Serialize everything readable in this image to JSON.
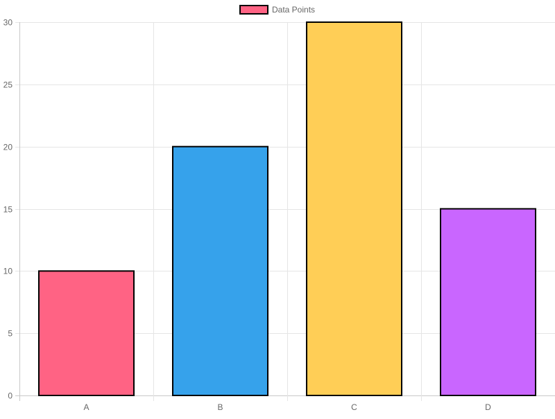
{
  "chart_data": {
    "type": "bar",
    "categories": [
      "A",
      "B",
      "C",
      "D"
    ],
    "series": [
      {
        "name": "Data Points",
        "values": [
          10,
          20,
          30,
          15
        ]
      }
    ],
    "ylim": [
      0,
      30
    ],
    "yticks": [
      0,
      5,
      10,
      15,
      20,
      25,
      30
    ],
    "grid": true,
    "legend": "top-center",
    "colors": [
      "#ff6384",
      "#36a2eb",
      "#ffce56",
      "#c966ff"
    ],
    "border_color": "#000000",
    "grid_color": "#e5e5e5",
    "axis_color": "#c8c8c8",
    "text_color": "#666666"
  }
}
